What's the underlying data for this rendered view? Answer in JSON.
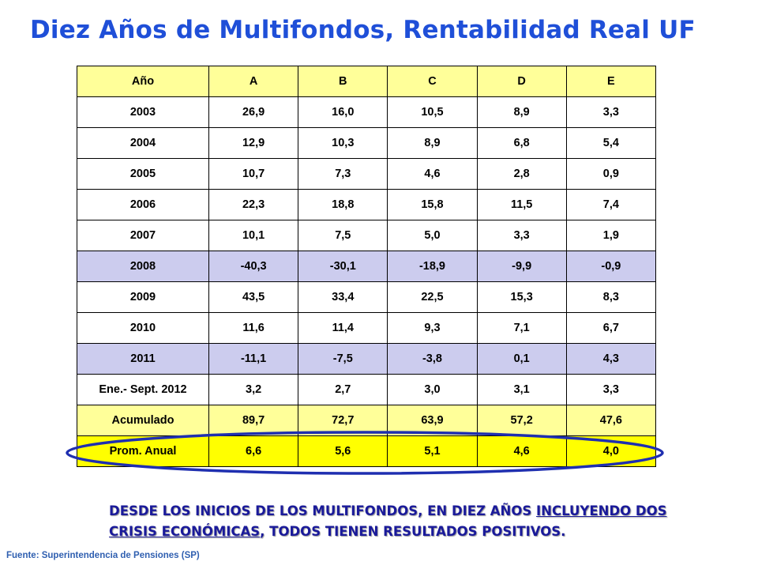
{
  "title": "Diez Años de Multifondos, Rentabilidad Real UF",
  "table": {
    "headers": [
      "Año",
      "A",
      "B",
      "C",
      "D",
      "E"
    ],
    "rows": [
      {
        "type": "white",
        "cells": [
          "2003",
          "26,9",
          "16,0",
          "10,5",
          "8,9",
          "3,3"
        ]
      },
      {
        "type": "white",
        "cells": [
          "2004",
          "12,9",
          "10,3",
          "8,9",
          "6,8",
          "5,4"
        ]
      },
      {
        "type": "white",
        "cells": [
          "2005",
          "10,7",
          "7,3",
          "4,6",
          "2,8",
          "0,9"
        ]
      },
      {
        "type": "white",
        "cells": [
          "2006",
          "22,3",
          "18,8",
          "15,8",
          "11,5",
          "7,4"
        ]
      },
      {
        "type": "white",
        "cells": [
          "2007",
          "10,1",
          "7,5",
          "5,0",
          "3,3",
          "1,9"
        ]
      },
      {
        "type": "neg",
        "cells": [
          "2008",
          "-40,3",
          "-30,1",
          "-18,9",
          "-9,9",
          "-0,9"
        ]
      },
      {
        "type": "white",
        "cells": [
          "2009",
          "43,5",
          "33,4",
          "22,5",
          "15,3",
          "8,3"
        ]
      },
      {
        "type": "white",
        "cells": [
          "2010",
          "11,6",
          "11,4",
          "9,3",
          "7,1",
          "6,7"
        ]
      },
      {
        "type": "neg",
        "cells": [
          "2011",
          "-11,1",
          "-7,5",
          "-3,8",
          "0,1",
          "4,3"
        ]
      },
      {
        "type": "white",
        "cells": [
          "Ene.- Sept. 2012",
          "3,2",
          "2,7",
          "3,0",
          "3,1",
          "3,3"
        ]
      },
      {
        "type": "acum",
        "cells": [
          "Acumulado",
          "89,7",
          "72,7",
          "63,9",
          "57,2",
          "47,6"
        ]
      },
      {
        "type": "prom",
        "cells": [
          "Prom. Anual",
          "6,6",
          "5,6",
          "5,1",
          "4,6",
          "4,0"
        ]
      }
    ]
  },
  "note": {
    "part1": "DESDE LOS INICIOS DE LOS MULTIFONDOS, EN DIEZ AÑOS ",
    "part2_underlined": "INCLUYENDO DOS CRISIS ECONÓMICAS",
    "part3": ", TODOS TIENEN RESULTADOS POSITIVOS."
  },
  "source": "Fuente: Superintendencia de Pensiones (SP)",
  "colors": {
    "title": "#1f4fd8",
    "header_fill": "#ffff99",
    "negative_year_fill": "#ccccee",
    "acumulado_fill": "#ffff99",
    "promedio_fill": "#ffff00",
    "ellipse_stroke": "#1f2fb0",
    "note_text": "#1a1a9a"
  }
}
